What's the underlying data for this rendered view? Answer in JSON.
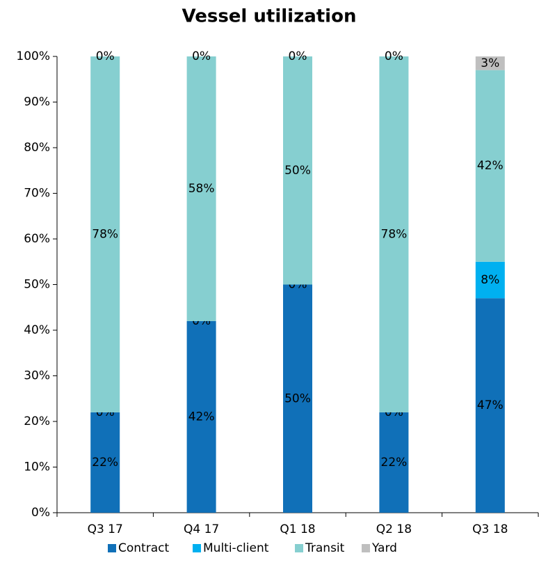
{
  "chart_data": {
    "type": "stacked_bar",
    "title": "Vessel utilization",
    "categories": [
      "Q3 17",
      "Q4 17",
      "Q1 18",
      "Q2 18",
      "Q3 18"
    ],
    "series": [
      {
        "name": "Contract",
        "color": "#1070b8",
        "values": [
          22,
          42,
          50,
          22,
          47
        ],
        "value_labels": [
          "22%",
          "42%",
          "50%",
          "22%",
          "47%"
        ]
      },
      {
        "name": "Multi-client",
        "color": "#00b0f0",
        "values": [
          0,
          0,
          0,
          0,
          8
        ],
        "value_labels": [
          "0%",
          "0%",
          "0%",
          "0%",
          "8%"
        ]
      },
      {
        "name": "Transit",
        "color": "#86cfd0",
        "values": [
          78,
          58,
          50,
          78,
          42
        ],
        "value_labels": [
          "78%",
          "58%",
          "50%",
          "78%",
          "42%"
        ]
      },
      {
        "name": "Yard",
        "color": "#bfbfbf",
        "values": [
          0,
          0,
          0,
          0,
          3
        ],
        "value_labels": [
          "0%",
          "0%",
          "0%",
          "0%",
          "3%"
        ]
      }
    ],
    "ylim": [
      0,
      100
    ],
    "yticks": [
      {
        "value": 0,
        "label": "0%"
      },
      {
        "value": 10,
        "label": "10%"
      },
      {
        "value": 20,
        "label": "20%"
      },
      {
        "value": 30,
        "label": "30%"
      },
      {
        "value": 40,
        "label": "40%"
      },
      {
        "value": 50,
        "label": "50%"
      },
      {
        "value": 60,
        "label": "60%"
      },
      {
        "value": 70,
        "label": "70%"
      },
      {
        "value": 80,
        "label": "80%"
      },
      {
        "value": 90,
        "label": "90%"
      },
      {
        "value": 100,
        "label": "100%"
      }
    ],
    "legend": "bottom"
  }
}
